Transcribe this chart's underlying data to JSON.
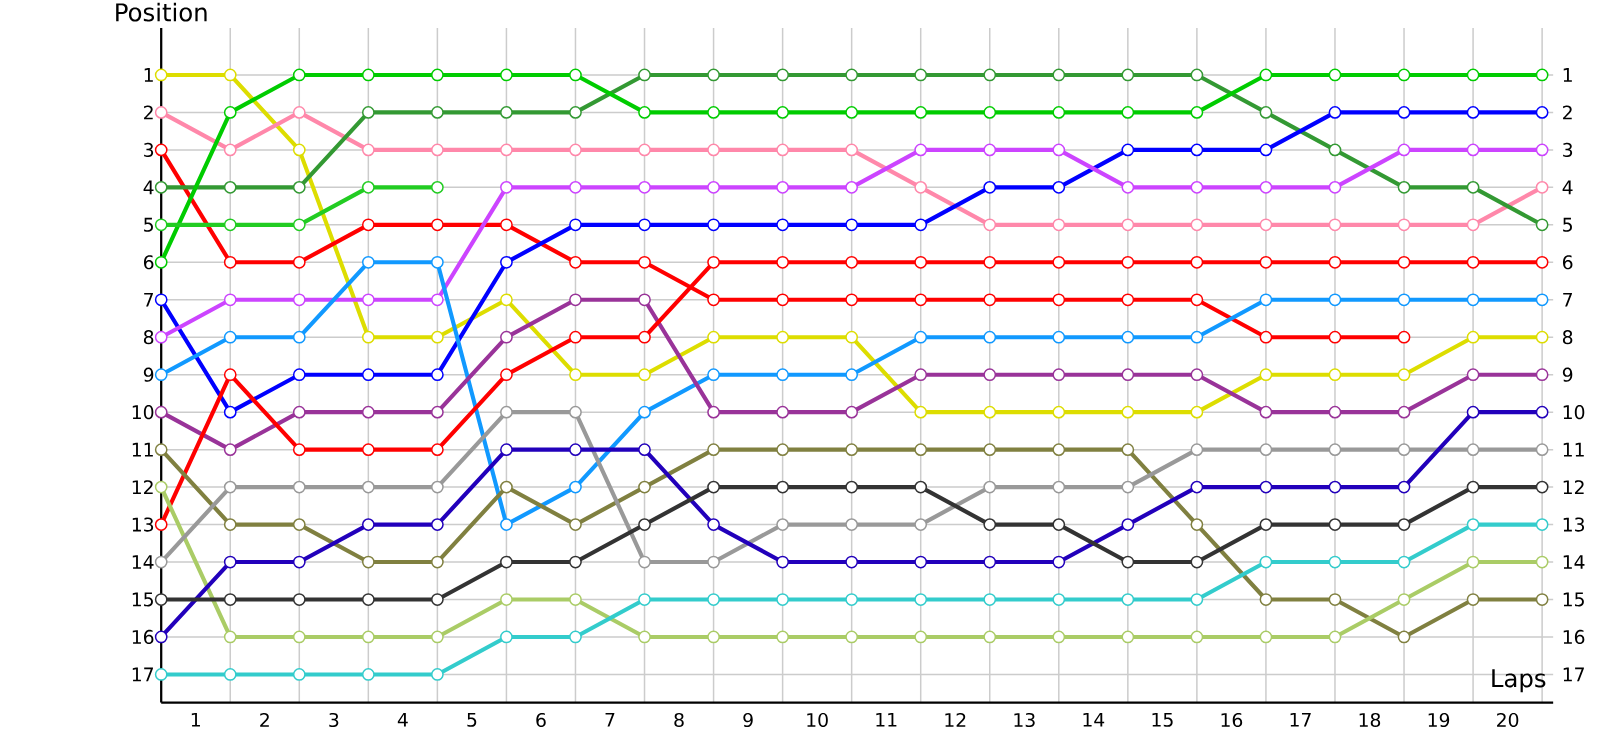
{
  "chart_data": {
    "type": "line",
    "xlabel": "Laps",
    "ylabel": "Position",
    "marker": "circle",
    "line_style": "solid",
    "grid": true,
    "x": [
      0,
      1,
      2,
      3,
      4,
      5,
      6,
      7,
      8,
      9,
      10,
      11,
      12,
      13,
      14,
      15,
      16,
      17,
      18,
      19,
      20
    ],
    "xlim": [
      0,
      20.16
    ],
    "ylim": [
      17.75,
      -0.25
    ],
    "xticks": [
      {
        "value": 0,
        "label": null
      },
      {
        "value": 1,
        "label": null
      },
      {
        "value": 2,
        "label": null
      },
      {
        "value": 3,
        "label": null
      },
      {
        "value": 4,
        "label": null
      },
      {
        "value": 5,
        "label": null
      },
      {
        "value": 6,
        "label": null
      },
      {
        "value": 7,
        "label": null
      },
      {
        "value": 8,
        "label": null
      },
      {
        "value": 9,
        "label": null
      },
      {
        "value": 10,
        "label": null
      },
      {
        "value": 11,
        "label": null
      },
      {
        "value": 12,
        "label": null
      },
      {
        "value": 13,
        "label": null
      },
      {
        "value": 14,
        "label": null
      },
      {
        "value": 15,
        "label": null
      },
      {
        "value": 16,
        "label": null
      },
      {
        "value": 17,
        "label": null
      },
      {
        "value": 18,
        "label": null
      },
      {
        "value": 19,
        "label": null
      },
      {
        "value": 20,
        "label": null
      },
      {
        "value": 0.5,
        "label": "1"
      },
      {
        "value": 1.5,
        "label": "2"
      },
      {
        "value": 2.5,
        "label": "3"
      },
      {
        "value": 3.5,
        "label": "4"
      },
      {
        "value": 4.5,
        "label": "5"
      },
      {
        "value": 5.5,
        "label": "6"
      },
      {
        "value": 6.5,
        "label": "7"
      },
      {
        "value": 7.5,
        "label": "8"
      },
      {
        "value": 8.5,
        "label": "9"
      },
      {
        "value": 9.5,
        "label": "10"
      },
      {
        "value": 10.5,
        "label": "11"
      },
      {
        "value": 11.5,
        "label": "12"
      },
      {
        "value": 12.5,
        "label": "13"
      },
      {
        "value": 13.5,
        "label": "14"
      },
      {
        "value": 14.5,
        "label": "15"
      },
      {
        "value": 15.5,
        "label": "16"
      },
      {
        "value": 16.5,
        "label": "17"
      },
      {
        "value": 17.5,
        "label": "18"
      },
      {
        "value": 18.5,
        "label": "19"
      },
      {
        "value": 19.5,
        "label": "20"
      }
    ],
    "yticks": [
      1,
      2,
      3,
      4,
      5,
      6,
      7,
      8,
      9,
      10,
      11,
      12,
      13,
      14,
      15,
      16,
      17
    ],
    "y2lim": [
      17.75,
      -0.25
    ],
    "y2ticks": [
      1,
      2,
      3,
      4,
      5,
      6,
      7,
      8,
      9,
      10,
      11,
      12,
      13,
      14,
      15,
      16,
      17
    ],
    "series": [
      {
        "color": "#dddd00",
        "values": [
          1,
          1,
          3,
          8,
          8,
          7,
          9,
          9,
          8,
          8,
          8,
          10,
          10,
          10,
          10,
          10,
          9,
          9,
          9,
          8,
          8
        ]
      },
      {
        "color": "#ff88aa",
        "values": [
          2,
          3,
          2,
          3,
          3,
          3,
          3,
          3,
          3,
          3,
          3,
          4,
          5,
          5,
          5,
          5,
          5,
          5,
          5,
          5,
          4
        ]
      },
      {
        "color": "#ff0000",
        "values": [
          3,
          6,
          6,
          5,
          5,
          5,
          6,
          6,
          7,
          7,
          7,
          7,
          7,
          7,
          7,
          7,
          8,
          8,
          8,
          null,
          null
        ]
      },
      {
        "color": "#339933",
        "values": [
          4,
          4,
          4,
          2,
          2,
          2,
          2,
          1,
          1,
          1,
          1,
          1,
          1,
          1,
          1,
          1,
          2,
          3,
          4,
          4,
          5
        ]
      },
      {
        "color": "#00cc00",
        "values": [
          6,
          2,
          1,
          1,
          1,
          1,
          1,
          2,
          2,
          2,
          2,
          2,
          2,
          2,
          2,
          2,
          1,
          1,
          1,
          1,
          1
        ]
      },
      {
        "color": "#22cc22",
        "values": [
          5,
          5,
          5,
          4,
          4,
          null,
          null,
          null,
          null,
          null,
          null,
          null,
          null,
          null,
          null,
          null,
          null,
          null,
          null,
          null,
          null
        ]
      },
      {
        "color": "#0000ff",
        "values": [
          7,
          10,
          9,
          9,
          9,
          6,
          5,
          5,
          5,
          5,
          5,
          5,
          4,
          4,
          3,
          3,
          3,
          2,
          2,
          2,
          2
        ]
      },
      {
        "color": "#cc44ff",
        "values": [
          8,
          7,
          7,
          7,
          7,
          4,
          4,
          4,
          4,
          4,
          4,
          3,
          3,
          3,
          4,
          4,
          4,
          4,
          3,
          3,
          3
        ]
      },
      {
        "color": "#1199ff",
        "values": [
          9,
          8,
          8,
          6,
          6,
          13,
          12,
          10,
          9,
          9,
          9,
          8,
          8,
          8,
          8,
          8,
          7,
          7,
          7,
          7,
          7
        ]
      },
      {
        "color": "#993399",
        "values": [
          10,
          11,
          10,
          10,
          10,
          8,
          7,
          7,
          10,
          10,
          10,
          9,
          9,
          9,
          9,
          9,
          10,
          10,
          10,
          9,
          9
        ]
      },
      {
        "color": "#ff0000",
        "values": [
          13,
          9,
          11,
          11,
          11,
          9,
          8,
          8,
          6,
          6,
          6,
          6,
          6,
          6,
          6,
          6,
          6,
          6,
          6,
          6,
          6
        ]
      },
      {
        "color": "#808040",
        "values": [
          11,
          13,
          13,
          14,
          14,
          12,
          13,
          12,
          11,
          11,
          11,
          11,
          11,
          11,
          11,
          13,
          15,
          15,
          16,
          15,
          15
        ]
      },
      {
        "color": "#aacc66",
        "values": [
          12,
          16,
          16,
          16,
          16,
          15,
          15,
          16,
          16,
          16,
          16,
          16,
          16,
          16,
          16,
          16,
          16,
          16,
          15,
          14,
          14
        ]
      },
      {
        "color": "#999999",
        "values": [
          14,
          12,
          12,
          12,
          12,
          10,
          10,
          14,
          14,
          13,
          13,
          13,
          12,
          12,
          12,
          11,
          11,
          11,
          11,
          11,
          11
        ]
      },
      {
        "color": "#2200bb",
        "values": [
          16,
          14,
          14,
          13,
          13,
          11,
          11,
          11,
          13,
          14,
          14,
          14,
          14,
          14,
          13,
          12,
          12,
          12,
          12,
          10,
          10
        ]
      },
      {
        "color": "#333333",
        "values": [
          15,
          15,
          15,
          15,
          15,
          14,
          14,
          13,
          12,
          12,
          12,
          12,
          13,
          13,
          14,
          14,
          13,
          13,
          13,
          12,
          12
        ]
      },
      {
        "color": "#33cccc",
        "values": [
          17,
          17,
          17,
          17,
          17,
          16,
          16,
          15,
          15,
          15,
          15,
          15,
          15,
          15,
          15,
          15,
          14,
          14,
          14,
          13,
          13
        ]
      }
    ]
  }
}
